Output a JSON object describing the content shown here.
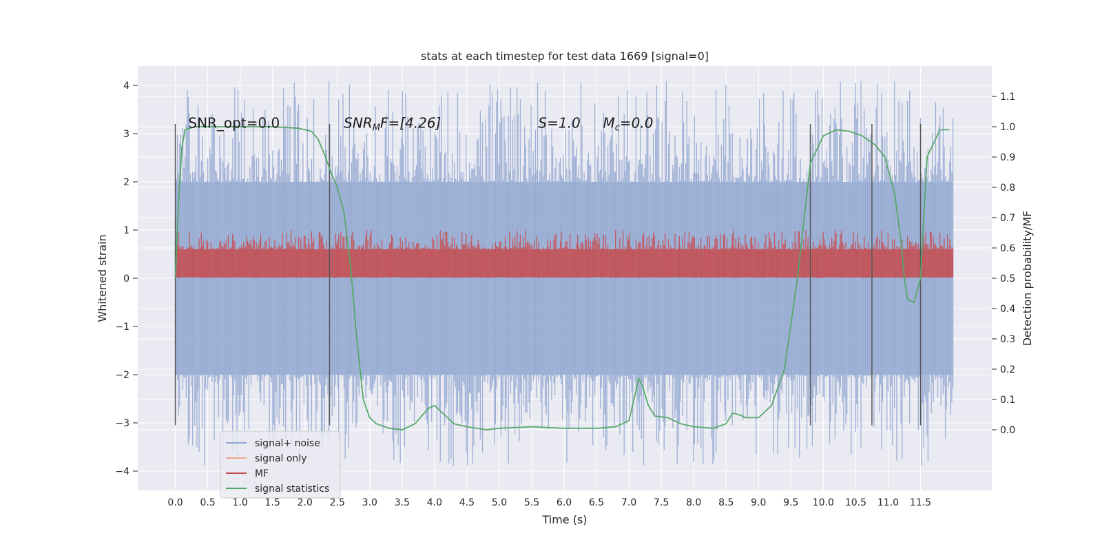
{
  "chart_data": {
    "type": "line",
    "title": "stats at each timestep for test data 1669 [signal=0]",
    "xlabel": "Time (s)",
    "ylabel": "Whitened strain",
    "ylabel_right": "Detection probability/MF",
    "xlim": [
      -0.58,
      12.6
    ],
    "ylim": [
      -4.4,
      4.4
    ],
    "ylim_right": [
      -0.2,
      1.2
    ],
    "x_ticks": [
      0.0,
      0.5,
      1.0,
      1.5,
      2.0,
      2.5,
      3.0,
      3.5,
      4.0,
      4.5,
      5.0,
      5.5,
      6.0,
      6.5,
      7.0,
      7.5,
      8.0,
      8.5,
      9.0,
      9.5,
      10.0,
      10.5,
      11.0,
      11.5
    ],
    "x_tick_labels": [
      "0.0",
      "0.5",
      "1.0",
      "1.5",
      "2.0",
      "2.5",
      "3.0",
      "3.5",
      "4.0",
      "4.5",
      "5.0",
      "5.5",
      "6.0",
      "6.5",
      "7.0",
      "7.5",
      "8.0",
      "8.5",
      "9.0",
      "9.5",
      "10.0",
      "10.5",
      "11.0",
      "11.5"
    ],
    "y_ticks": [
      -4,
      -3,
      -2,
      -1,
      0,
      1,
      2,
      3,
      4
    ],
    "y_tick_labels": [
      "−4",
      "−3",
      "−2",
      "−1",
      "0",
      "1",
      "2",
      "3",
      "4"
    ],
    "y_right_ticks": [
      0.0,
      0.1,
      0.2,
      0.3,
      0.4,
      0.5,
      0.6,
      0.7,
      0.8,
      0.9,
      1.0,
      1.1
    ],
    "y_right_tick_labels": [
      "0.0",
      "0.1",
      "0.2",
      "0.3",
      "0.4",
      "0.5",
      "0.6",
      "0.7",
      "0.8",
      "0.9",
      "1.0",
      "1.1"
    ],
    "grid": true,
    "legend_position": "lower-left",
    "series": [
      {
        "name": "signal+ noise",
        "color": "#8fa6d0",
        "axis": "left",
        "x_range": [
          0.0,
          12.0
        ],
        "band": {
          "core_min": -2.0,
          "core_max": 2.0,
          "spike_min": -3.9,
          "spike_max": 4.1
        }
      },
      {
        "name": "signal only",
        "color": "#e8a58c",
        "axis": "left",
        "x": [],
        "y": []
      },
      {
        "name": "MF",
        "color": "#c44e52",
        "axis": "left",
        "x_range": [
          0.0,
          12.0
        ],
        "band": {
          "core_min": 0.02,
          "core_max": 0.6,
          "spike_min": 0.0,
          "spike_max": 1.0
        }
      },
      {
        "name": "signal statistics",
        "color": "#55a868",
        "axis": "right",
        "x": [
          0.0,
          0.05,
          0.1,
          0.15,
          0.3,
          0.6,
          1.0,
          1.5,
          1.9,
          2.1,
          2.2,
          2.3,
          2.4,
          2.5,
          2.6,
          2.7,
          2.8,
          2.9,
          3.0,
          3.1,
          3.3,
          3.5,
          3.7,
          3.9,
          4.0,
          4.1,
          4.2,
          4.3,
          4.5,
          4.8,
          5.0,
          5.5,
          6.0,
          6.5,
          6.8,
          7.0,
          7.1,
          7.15,
          7.2,
          7.3,
          7.4,
          7.6,
          7.8,
          8.0,
          8.3,
          8.5,
          8.6,
          8.7,
          8.8,
          9.0,
          9.2,
          9.4,
          9.6,
          9.8,
          10.0,
          10.2,
          10.4,
          10.6,
          10.8,
          10.95,
          11.1,
          11.2,
          11.25,
          11.3,
          11.4,
          11.5,
          11.6,
          11.8,
          11.95
        ],
        "y": [
          0.5,
          0.75,
          0.93,
          0.99,
          1.0,
          1.0,
          1.0,
          1.0,
          0.995,
          0.985,
          0.96,
          0.91,
          0.85,
          0.8,
          0.72,
          0.55,
          0.3,
          0.1,
          0.04,
          0.02,
          0.005,
          0.0,
          0.02,
          0.07,
          0.08,
          0.06,
          0.04,
          0.02,
          0.01,
          0.0,
          0.005,
          0.01,
          0.005,
          0.005,
          0.01,
          0.03,
          0.12,
          0.17,
          0.15,
          0.08,
          0.045,
          0.04,
          0.02,
          0.01,
          0.005,
          0.02,
          0.055,
          0.05,
          0.04,
          0.04,
          0.08,
          0.2,
          0.5,
          0.88,
          0.97,
          0.99,
          0.985,
          0.97,
          0.94,
          0.9,
          0.78,
          0.62,
          0.5,
          0.43,
          0.42,
          0.5,
          0.9,
          0.99,
          0.99
        ]
      }
    ],
    "vlines": [
      0.0,
      2.38,
      9.8,
      10.75,
      11.5
    ],
    "vline_range": [
      -3.05,
      3.2
    ],
    "annotations": [
      {
        "text": "SNR_opt=0.0",
        "x": 0.2,
        "y": 3.12
      },
      {
        "text": "SNR",
        "sub": "M",
        "tail": "F=[4.26]",
        "italic": true,
        "x": 2.6,
        "y": 3.12
      },
      {
        "text": "S",
        "tail": "=1.0",
        "italic": true,
        "x": 5.6,
        "y": 3.12
      },
      {
        "text": "M",
        "sub": "c",
        "tail": "=0.0",
        "italic": true,
        "x": 6.6,
        "y": 3.12
      }
    ]
  }
}
